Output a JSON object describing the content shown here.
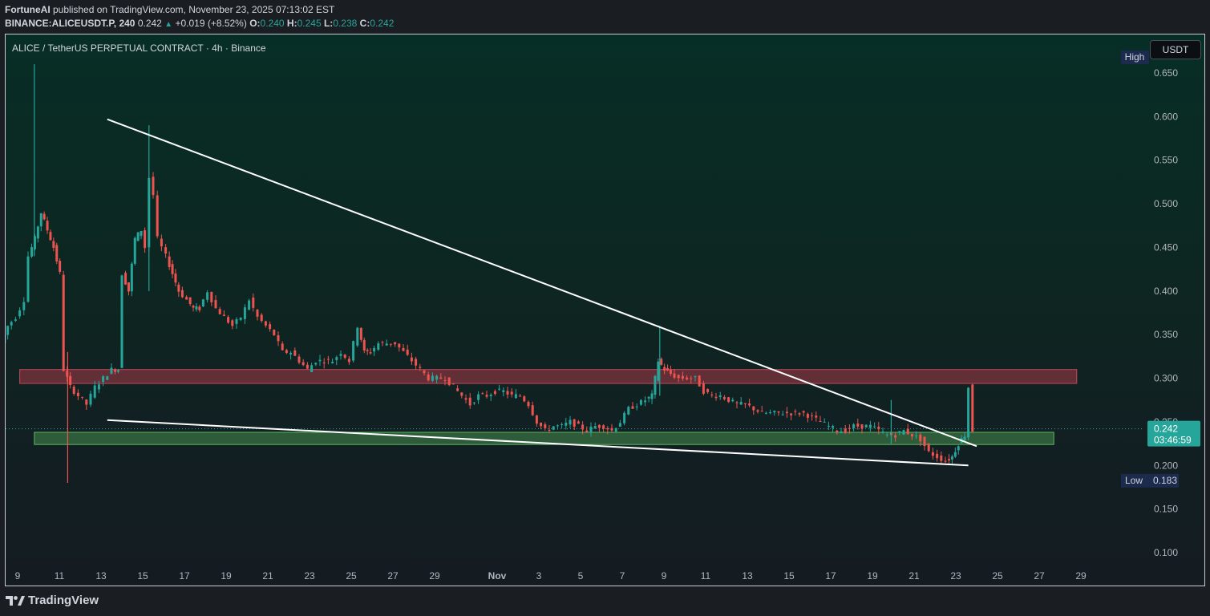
{
  "header": {
    "author": "FortuneAI",
    "published": " published on TradingView.com, November 23, 2025 07:13:02 EST",
    "symbol_line": "BINANCE:ALICEUSDT.P, 240",
    "last": "0.242",
    "change": "+0.019 (+8.52%)",
    "o_label": "O:",
    "o": "0.240",
    "h_label": "H:",
    "h": "0.245",
    "l_label": "L:",
    "l": "0.238",
    "c_label": "C:",
    "c": "0.242"
  },
  "chart_title": "ALICE / TetherUS PERPETUAL CONTRACT · 4h · Binance",
  "currency_button": "USDT",
  "footer": {
    "brand": "TradingView"
  },
  "colors": {
    "up": "#26a69a",
    "down": "#ef5350",
    "resistance_zone": "#a83a48",
    "support_zone": "#4a9a52",
    "trendline": "#ffffff",
    "price_tag": "#26a69a",
    "high_low_tag": "#1c2b4d"
  },
  "chart_data": {
    "type": "candlestick",
    "title": "ALICE / TetherUS PERPETUAL CONTRACT · 4h · Binance",
    "y_ticks": [
      "0.650",
      "0.600",
      "0.550",
      "0.500",
      "0.450",
      "0.400",
      "0.350",
      "0.300",
      "0.250",
      "0.200",
      "0.150",
      "0.100"
    ],
    "y_tick_values": [
      0.65,
      0.6,
      0.55,
      0.5,
      0.45,
      0.4,
      0.35,
      0.3,
      0.25,
      0.2,
      0.15,
      0.1
    ],
    "x_ticks": [
      "9",
      "11",
      "13",
      "15",
      "17",
      "19",
      "21",
      "23",
      "25",
      "27",
      "29",
      "Nov",
      "3",
      "5",
      "7",
      "9",
      "11",
      "13",
      "15",
      "17",
      "19",
      "21",
      "23",
      "25",
      "27",
      "29"
    ],
    "x_tick_days": [
      9,
      11,
      13,
      15,
      17,
      19,
      21,
      23,
      25,
      27,
      29,
      32,
      34,
      36,
      38,
      40,
      42,
      44,
      46,
      48,
      50,
      52,
      54,
      56,
      58,
      60
    ],
    "x_note": "day index: October day number; November days = 31 + day",
    "ylim": [
      0.07,
      0.68
    ],
    "last_price": "0.242",
    "countdown": "03:46:59",
    "high_label": "High",
    "low_label": "Low",
    "low_value": "0.183",
    "price_path": [
      [
        8.3,
        0.34
      ],
      [
        8.6,
        0.36
      ],
      [
        9.0,
        0.37
      ],
      [
        9.4,
        0.39
      ],
      [
        9.6,
        0.44
      ],
      [
        9.9,
        0.46
      ],
      [
        10.2,
        0.49
      ],
      [
        10.5,
        0.47
      ],
      [
        10.8,
        0.45
      ],
      [
        11.1,
        0.42
      ],
      [
        11.3,
        0.31
      ],
      [
        11.6,
        0.29
      ],
      [
        12.0,
        0.28
      ],
      [
        12.4,
        0.27
      ],
      [
        12.8,
        0.29
      ],
      [
        13.2,
        0.3
      ],
      [
        13.6,
        0.31
      ],
      [
        13.9,
        0.31
      ],
      [
        14.1,
        0.42
      ],
      [
        14.4,
        0.4
      ],
      [
        14.7,
        0.46
      ],
      [
        15.0,
        0.47
      ],
      [
        15.2,
        0.45
      ],
      [
        15.4,
        0.53
      ],
      [
        15.6,
        0.51
      ],
      [
        15.8,
        0.46
      ],
      [
        16.2,
        0.44
      ],
      [
        16.5,
        0.42
      ],
      [
        16.8,
        0.4
      ],
      [
        17.2,
        0.39
      ],
      [
        17.5,
        0.38
      ],
      [
        17.8,
        0.38
      ],
      [
        18.2,
        0.4
      ],
      [
        18.6,
        0.38
      ],
      [
        19.0,
        0.37
      ],
      [
        19.4,
        0.36
      ],
      [
        19.8,
        0.37
      ],
      [
        20.2,
        0.39
      ],
      [
        20.6,
        0.37
      ],
      [
        21.0,
        0.36
      ],
      [
        21.4,
        0.35
      ],
      [
        21.8,
        0.33
      ],
      [
        22.2,
        0.33
      ],
      [
        22.6,
        0.32
      ],
      [
        23.0,
        0.31
      ],
      [
        23.4,
        0.32
      ],
      [
        23.8,
        0.32
      ],
      [
        24.2,
        0.32
      ],
      [
        24.6,
        0.33
      ],
      [
        25.0,
        0.32
      ],
      [
        25.4,
        0.36
      ],
      [
        25.7,
        0.33
      ],
      [
        26.0,
        0.33
      ],
      [
        26.4,
        0.34
      ],
      [
        26.8,
        0.34
      ],
      [
        27.2,
        0.34
      ],
      [
        27.6,
        0.33
      ],
      [
        28.0,
        0.32
      ],
      [
        28.4,
        0.31
      ],
      [
        28.8,
        0.3
      ],
      [
        29.2,
        0.3
      ],
      [
        29.6,
        0.3
      ],
      [
        30.0,
        0.29
      ],
      [
        30.4,
        0.28
      ],
      [
        30.8,
        0.27
      ],
      [
        31.2,
        0.28
      ],
      [
        31.6,
        0.28
      ],
      [
        32.0,
        0.285
      ],
      [
        32.4,
        0.285
      ],
      [
        32.8,
        0.28
      ],
      [
        33.2,
        0.28
      ],
      [
        33.6,
        0.27
      ],
      [
        34.0,
        0.25
      ],
      [
        34.4,
        0.24
      ],
      [
        34.8,
        0.245
      ],
      [
        35.2,
        0.245
      ],
      [
        35.6,
        0.25
      ],
      [
        36.0,
        0.245
      ],
      [
        36.4,
        0.24
      ],
      [
        36.8,
        0.245
      ],
      [
        37.2,
        0.245
      ],
      [
        37.6,
        0.24
      ],
      [
        38.0,
        0.25
      ],
      [
        38.4,
        0.265
      ],
      [
        38.8,
        0.27
      ],
      [
        39.2,
        0.275
      ],
      [
        39.5,
        0.28
      ],
      [
        39.8,
        0.32
      ],
      [
        40.1,
        0.31
      ],
      [
        40.4,
        0.305
      ],
      [
        40.8,
        0.3
      ],
      [
        41.2,
        0.3
      ],
      [
        41.6,
        0.3
      ],
      [
        42.0,
        0.285
      ],
      [
        42.4,
        0.28
      ],
      [
        42.8,
        0.28
      ],
      [
        43.2,
        0.275
      ],
      [
        43.6,
        0.27
      ],
      [
        44.0,
        0.27
      ],
      [
        44.4,
        0.265
      ],
      [
        44.8,
        0.26
      ],
      [
        45.2,
        0.26
      ],
      [
        45.6,
        0.26
      ],
      [
        46.0,
        0.26
      ],
      [
        46.4,
        0.26
      ],
      [
        46.8,
        0.26
      ],
      [
        47.2,
        0.255
      ],
      [
        47.6,
        0.25
      ],
      [
        48.0,
        0.245
      ],
      [
        48.4,
        0.24
      ],
      [
        48.8,
        0.24
      ],
      [
        49.2,
        0.245
      ],
      [
        49.6,
        0.245
      ],
      [
        50.0,
        0.245
      ],
      [
        50.4,
        0.24
      ],
      [
        50.8,
        0.235
      ],
      [
        51.2,
        0.235
      ],
      [
        51.6,
        0.24
      ],
      [
        52.0,
        0.235
      ],
      [
        52.4,
        0.23
      ],
      [
        52.8,
        0.215
      ],
      [
        53.2,
        0.21
      ],
      [
        53.6,
        0.205
      ],
      [
        53.9,
        0.21
      ],
      [
        54.2,
        0.225
      ],
      [
        54.5,
        0.235
      ],
      [
        54.7,
        0.29
      ],
      [
        54.9,
        0.24
      ]
    ],
    "resistance_zone": {
      "from_day": 9.1,
      "to_day": 59.8,
      "low": 0.294,
      "high": 0.31
    },
    "support_zone": {
      "from_day": 9.8,
      "to_day": 58.7,
      "low": 0.224,
      "high": 0.238
    },
    "trendlines": [
      {
        "name": "descending resistance",
        "from": [
          13.3,
          0.597
        ],
        "to": [
          55.0,
          0.222
        ]
      },
      {
        "name": "lower support",
        "from": [
          13.3,
          0.252
        ],
        "to": [
          54.6,
          0.2
        ]
      }
    ],
    "wicks": [
      {
        "day": 9.8,
        "high": 0.66,
        "low": 0.44
      },
      {
        "day": 11.4,
        "high": 0.33,
        "low": 0.18
      },
      {
        "day": 15.3,
        "high": 0.59,
        "low": 0.4
      },
      {
        "day": 39.8,
        "high": 0.36,
        "low": 0.28
      },
      {
        "day": 50.9,
        "high": 0.275,
        "low": 0.225
      }
    ]
  }
}
